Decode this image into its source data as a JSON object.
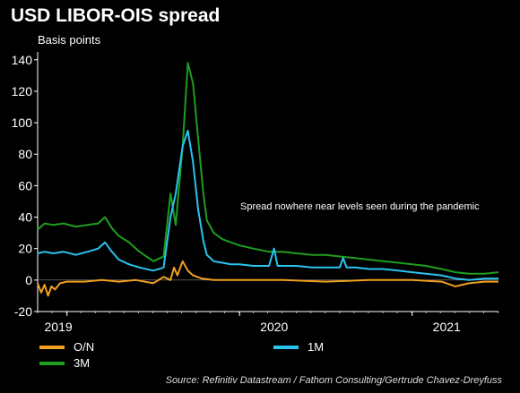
{
  "header": {
    "title": "USD LIBOR-OIS spread",
    "subtitle": "Basis points"
  },
  "source": "Source: Refinitiv Datastream / Fathom Consulting/Gertrude Chavez-Dreyfuss",
  "colors": {
    "on": "#f0a020",
    "m1": "#29c4f0",
    "m3": "#1f9e1f",
    "axis": "#ffffff"
  },
  "chart_data": {
    "type": "line",
    "title": "USD LIBOR-OIS spread",
    "ylabel": "Basis points",
    "xlabel": "",
    "ylim": [
      -20,
      145
    ],
    "yticks": [
      -20,
      0,
      20,
      40,
      60,
      80,
      100,
      120,
      140
    ],
    "xlim": [
      2018.83,
      2021.5
    ],
    "year_labels": [
      {
        "label": "2019",
        "x": 2019.0
      },
      {
        "label": "2020",
        "x": 2020.0
      },
      {
        "label": "2021",
        "x": 2021.0
      }
    ],
    "annotation": {
      "text": "Spread nowhere near levels seen during the pandemic",
      "x": 2020.2,
      "y": 47
    },
    "legend": [
      "O/N",
      "1M",
      "3M"
    ],
    "series": [
      {
        "name": "3M",
        "color": "#1f9e1f",
        "x": [
          2018.83,
          2018.87,
          2018.92,
          2018.98,
          2019.05,
          2019.12,
          2019.18,
          2019.22,
          2019.26,
          2019.3,
          2019.36,
          2019.42,
          2019.5,
          2019.56,
          2019.6,
          2019.63,
          2019.67,
          2019.7,
          2019.73,
          2019.76,
          2019.79,
          2019.81,
          2019.85,
          2019.9,
          2019.95,
          2020.0,
          2020.08,
          2020.17,
          2020.25,
          2020.33,
          2020.42,
          2020.5,
          2020.58,
          2020.67,
          2020.75,
          2020.83,
          2020.92,
          2021.0,
          2021.08,
          2021.17,
          2021.25,
          2021.33,
          2021.42,
          2021.5
        ],
        "y": [
          32,
          36,
          35,
          36,
          34,
          35,
          36,
          40,
          33,
          28,
          24,
          18,
          12,
          15,
          55,
          35,
          85,
          138,
          125,
          90,
          55,
          38,
          30,
          26,
          24,
          22,
          20,
          18,
          18,
          17,
          16,
          16,
          15,
          14,
          13,
          12,
          11,
          10,
          9,
          7,
          5,
          4,
          4,
          5
        ]
      },
      {
        "name": "1M",
        "color": "#29c4f0",
        "x": [
          2018.83,
          2018.87,
          2018.92,
          2018.98,
          2019.05,
          2019.12,
          2019.18,
          2019.22,
          2019.26,
          2019.3,
          2019.36,
          2019.42,
          2019.5,
          2019.56,
          2019.6,
          2019.63,
          2019.67,
          2019.7,
          2019.73,
          2019.76,
          2019.79,
          2019.81,
          2019.85,
          2019.9,
          2019.95,
          2020.0,
          2020.08,
          2020.17,
          2020.2,
          2020.22,
          2020.33,
          2020.42,
          2020.5,
          2020.58,
          2020.6,
          2020.62,
          2020.67,
          2020.75,
          2020.83,
          2020.92,
          2021.0,
          2021.08,
          2021.17,
          2021.25,
          2021.33,
          2021.42,
          2021.5
        ],
        "y": [
          17,
          18,
          17,
          18,
          16,
          18,
          20,
          24,
          18,
          13,
          10,
          8,
          6,
          8,
          40,
          55,
          85,
          95,
          75,
          45,
          25,
          16,
          12,
          11,
          10,
          10,
          9,
          9,
          20,
          9,
          9,
          8,
          8,
          8,
          14,
          8,
          8,
          7,
          7,
          6,
          5,
          4,
          3,
          1,
          0,
          1,
          1
        ]
      },
      {
        "name": "O/N",
        "color": "#f0a020",
        "x": [
          2018.83,
          2018.85,
          2018.87,
          2018.89,
          2018.91,
          2018.93,
          2018.96,
          2019.0,
          2019.1,
          2019.2,
          2019.3,
          2019.4,
          2019.5,
          2019.56,
          2019.6,
          2019.62,
          2019.64,
          2019.67,
          2019.7,
          2019.73,
          2019.78,
          2019.85,
          2020.0,
          2020.25,
          2020.5,
          2020.75,
          2021.0,
          2021.17,
          2021.25,
          2021.33,
          2021.42,
          2021.5
        ],
        "y": [
          -2,
          -8,
          -3,
          -10,
          -4,
          -6,
          -2,
          -1,
          -1,
          0,
          -1,
          0,
          -2,
          2,
          0,
          8,
          3,
          12,
          6,
          3,
          1,
          0,
          0,
          0,
          -1,
          0,
          0,
          -1,
          -4,
          -2,
          -1,
          -1
        ]
      }
    ]
  }
}
